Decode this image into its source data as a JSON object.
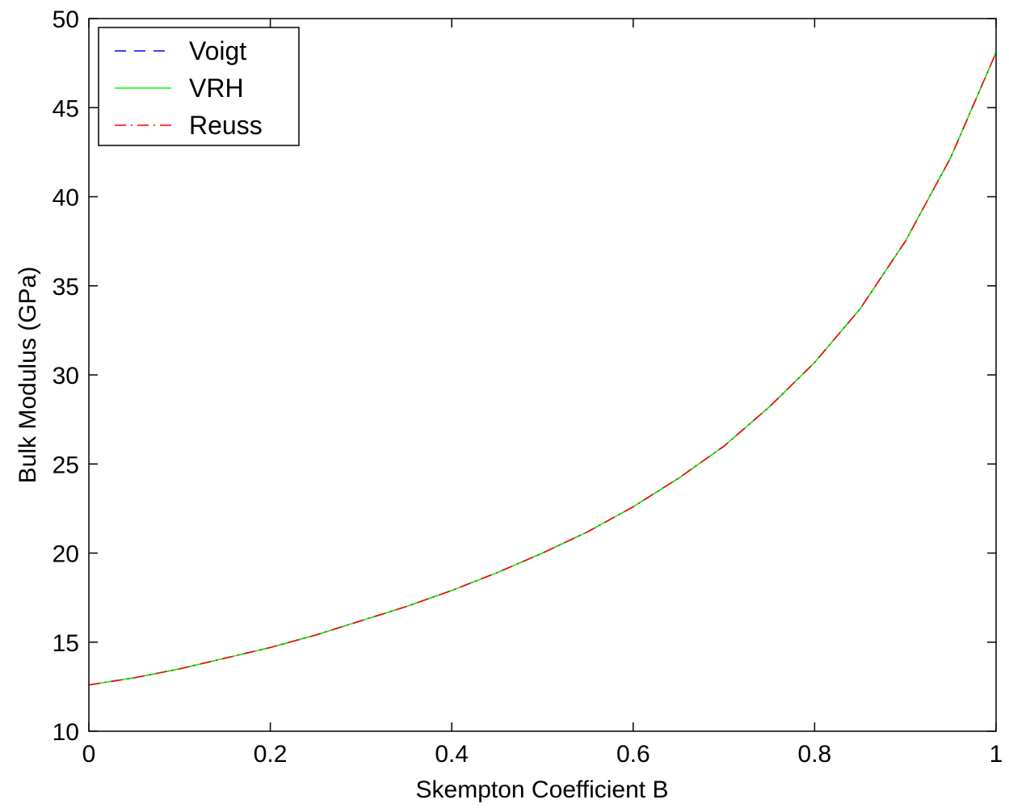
{
  "chart_data": {
    "type": "line",
    "title": "",
    "xlabel": "Skempton Coefficient B",
    "ylabel": "Bulk Modulus (GPa)",
    "xlim": [
      0,
      1
    ],
    "ylim": [
      10,
      50
    ],
    "xticks": [
      0,
      0.2,
      0.4,
      0.6,
      0.8,
      1
    ],
    "xtick_labels": [
      "0",
      "0.2",
      "0.4",
      "0.6",
      "0.8",
      "1"
    ],
    "yticks": [
      10,
      15,
      20,
      25,
      30,
      35,
      40,
      45,
      50
    ],
    "ytick_labels": [
      "10",
      "15",
      "20",
      "25",
      "30",
      "35",
      "40",
      "45",
      "50"
    ],
    "grid": false,
    "legend_position": "top-left",
    "x": [
      0,
      0.05,
      0.1,
      0.15,
      0.2,
      0.25,
      0.3,
      0.35,
      0.4,
      0.45,
      0.5,
      0.55,
      0.6,
      0.65,
      0.7,
      0.75,
      0.8,
      0.85,
      0.9,
      0.95,
      1.0
    ],
    "series": [
      {
        "name": "Voigt",
        "color": "#0000ff",
        "dash": "dashed",
        "values": [
          12.6,
          13.0,
          13.5,
          14.1,
          14.7,
          15.4,
          16.2,
          17.0,
          17.9,
          18.9,
          20.0,
          21.2,
          22.6,
          24.2,
          26.0,
          28.2,
          30.7,
          33.7,
          37.5,
          42.2,
          48.1
        ]
      },
      {
        "name": "VRH",
        "color": "#00ff00",
        "dash": "solid",
        "values": [
          12.6,
          13.0,
          13.5,
          14.1,
          14.7,
          15.4,
          16.2,
          17.0,
          17.9,
          18.9,
          20.0,
          21.2,
          22.6,
          24.2,
          26.0,
          28.2,
          30.7,
          33.7,
          37.5,
          42.2,
          48.1
        ]
      },
      {
        "name": "Reuss",
        "color": "#ff0000",
        "dash": "dashdot",
        "values": [
          12.6,
          13.0,
          13.5,
          14.1,
          14.7,
          15.4,
          16.2,
          17.0,
          17.9,
          18.9,
          20.0,
          21.2,
          22.6,
          24.2,
          26.0,
          28.2,
          30.7,
          33.7,
          37.5,
          42.2,
          48.1
        ]
      }
    ]
  }
}
